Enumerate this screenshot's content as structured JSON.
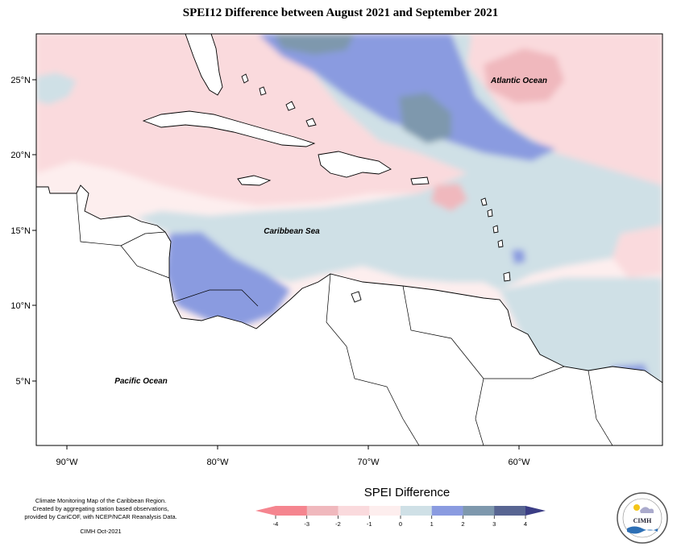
{
  "title": "SPEI12 Difference between August 2021 and September 2021",
  "axes": {
    "x_ticks": [
      "90°W",
      "80°W",
      "70°W",
      "60°W"
    ],
    "y_ticks": [
      "25°N",
      "20°N",
      "15°N",
      "10°N",
      "5°N"
    ]
  },
  "places": {
    "atlantic": "Atlantic Ocean",
    "caribbean": "Caribbean Sea",
    "pacific": "Pacific Ocean"
  },
  "legend": {
    "title": "SPEI Difference",
    "ticks": [
      "-4",
      "-3",
      "-2",
      "-1",
      "0",
      "1",
      "2",
      "3",
      "4"
    ],
    "colors": [
      "#f5858f",
      "#f0b8bd",
      "#fadadd",
      "#fdeeee",
      "#cfe0e6",
      "#8a9be0",
      "#7e98ad",
      "#586592",
      "#3b3d85"
    ]
  },
  "credits": {
    "line1": "Climate Monitoring Map of the Caribbean Region.",
    "line2": "Created by aggregating station based observations,",
    "line3": "provided by CariCOF, with NCEP/NCAR Reanalysis Data.",
    "line4": "CIMH Oct-2021"
  },
  "logo": {
    "text": "CIMH"
  }
}
